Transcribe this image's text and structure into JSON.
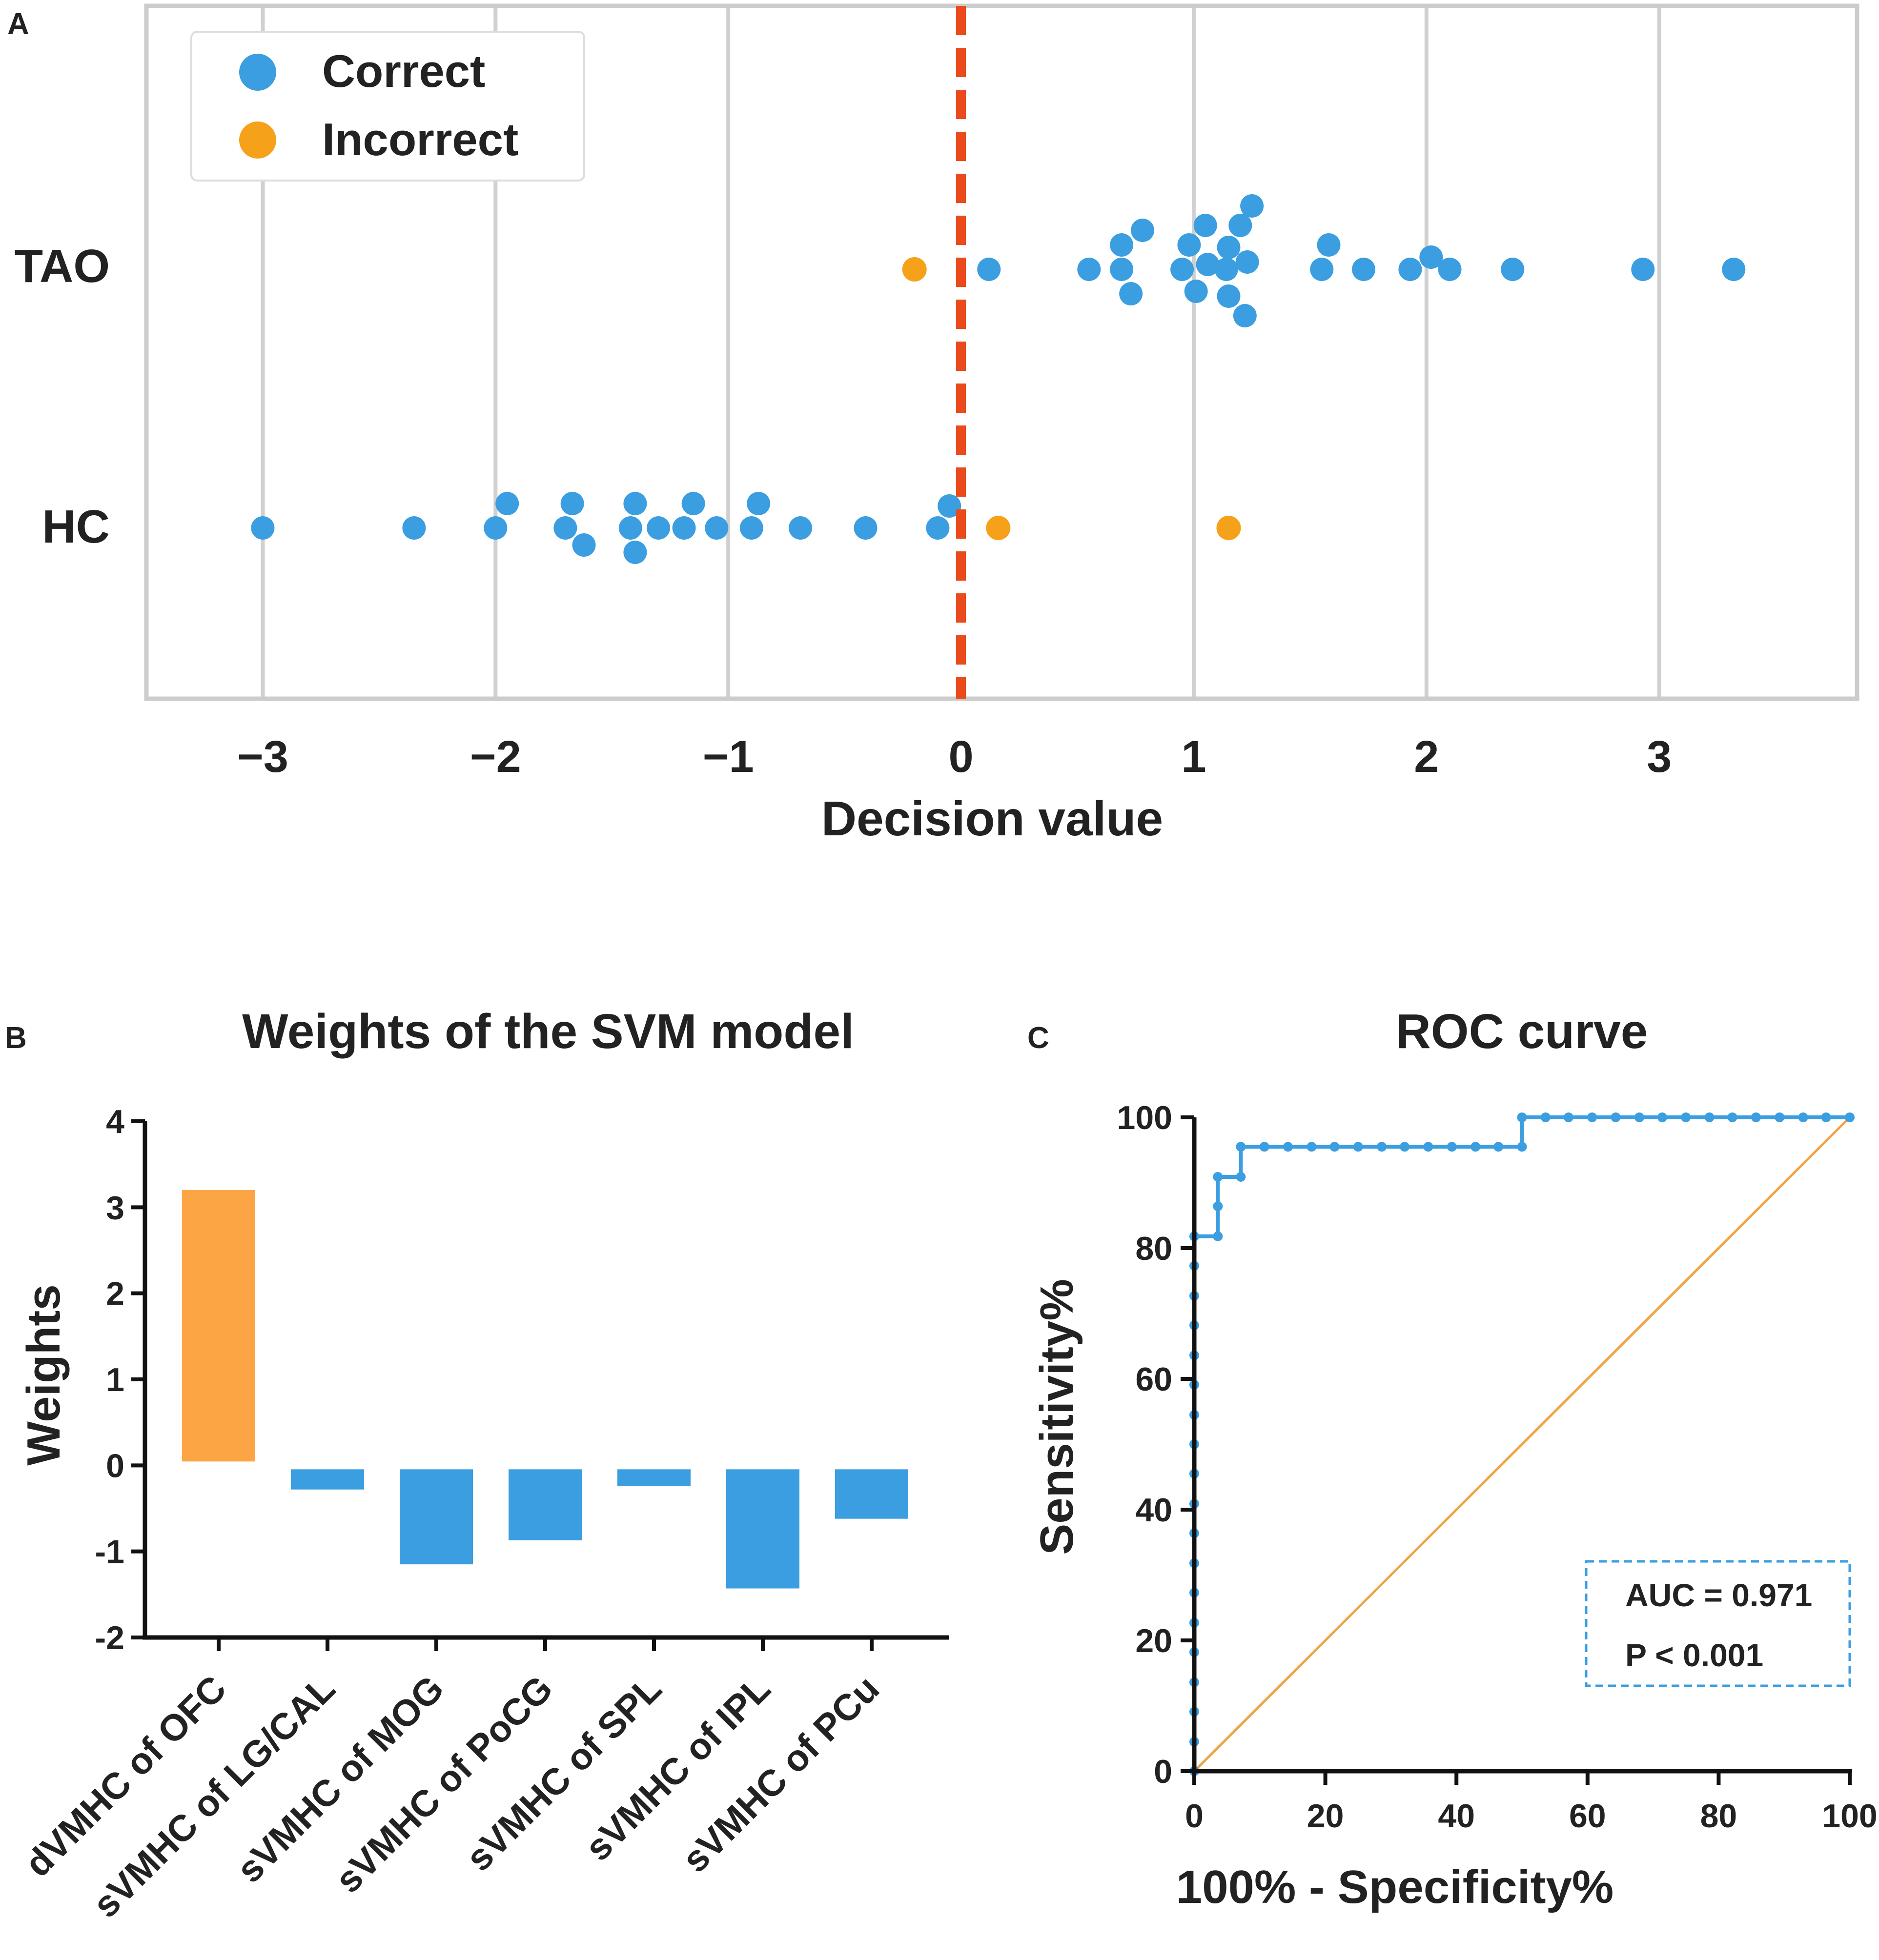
{
  "panels": {
    "a": "A",
    "b": "B",
    "c": "C"
  },
  "colors": {
    "correct": "#3a9ee0",
    "incorrect": "#f6a11a",
    "positive_bar": "#fba545",
    "negative_bar": "#3a9ee0",
    "threshold": "#ea4a1c",
    "diagonal": "#f0a445",
    "roc": "#3a9ee0",
    "grid": "#d0d0d0",
    "axis": "#111111"
  },
  "chart_data": [
    {
      "id": "A",
      "type": "scatter",
      "title": "",
      "xlabel": "Decision value",
      "ylabel": "",
      "xlim": [
        -3.5,
        3.85
      ],
      "xticks": [
        -3,
        -2,
        -1,
        0,
        1,
        2,
        3
      ],
      "xtick_labels": [
        "−3",
        "−2",
        "−1",
        "0",
        "1",
        "2",
        "3"
      ],
      "categories": [
        "TAO",
        "HC"
      ],
      "grid": true,
      "threshold": 0,
      "legend": {
        "position": "top-left",
        "entries": [
          "Correct",
          "Incorrect"
        ]
      },
      "series": [
        {
          "name": "TAO",
          "points": [
            {
              "x": -0.2,
              "o": 0,
              "s": "Incorrect"
            },
            {
              "x": 0.12,
              "o": 0,
              "s": "Correct"
            },
            {
              "x": 0.55,
              "o": 0,
              "s": "Correct"
            },
            {
              "x": 0.69,
              "o": 0,
              "s": "Correct"
            },
            {
              "x": 0.69,
              "o": 0.5,
              "s": "Correct"
            },
            {
              "x": 0.78,
              "o": 0.8,
              "s": "Correct"
            },
            {
              "x": 0.73,
              "o": -0.5,
              "s": "Correct"
            },
            {
              "x": 0.95,
              "o": 0,
              "s": "Correct"
            },
            {
              "x": 0.98,
              "o": 0.5,
              "s": "Correct"
            },
            {
              "x": 1.01,
              "o": -0.45,
              "s": "Correct"
            },
            {
              "x": 1.06,
              "o": 0.1,
              "s": "Correct"
            },
            {
              "x": 1.05,
              "o": 0.9,
              "s": "Correct"
            },
            {
              "x": 1.14,
              "o": 0,
              "s": "Correct"
            },
            {
              "x": 1.15,
              "o": 0.45,
              "s": "Correct"
            },
            {
              "x": 1.15,
              "o": -0.55,
              "s": "Correct"
            },
            {
              "x": 1.2,
              "o": 0.9,
              "s": "Correct"
            },
            {
              "x": 1.23,
              "o": 0.15,
              "s": "Correct"
            },
            {
              "x": 1.25,
              "o": 1.3,
              "s": "Correct"
            },
            {
              "x": 1.22,
              "o": -0.95,
              "s": "Correct"
            },
            {
              "x": 1.55,
              "o": 0,
              "s": "Correct"
            },
            {
              "x": 1.58,
              "o": 0.5,
              "s": "Correct"
            },
            {
              "x": 1.73,
              "o": 0,
              "s": "Correct"
            },
            {
              "x": 1.93,
              "o": 0,
              "s": "Correct"
            },
            {
              "x": 2.02,
              "o": 0.25,
              "s": "Correct"
            },
            {
              "x": 2.1,
              "o": 0,
              "s": "Correct"
            },
            {
              "x": 2.37,
              "o": 0,
              "s": "Correct"
            },
            {
              "x": 2.93,
              "o": 0,
              "s": "Correct"
            },
            {
              "x": 3.32,
              "o": 0,
              "s": "Correct"
            }
          ]
        },
        {
          "name": "HC",
          "points": [
            {
              "x": -3.0,
              "o": 0,
              "s": "Correct"
            },
            {
              "x": -2.35,
              "o": 0,
              "s": "Correct"
            },
            {
              "x": -2.0,
              "o": 0,
              "s": "Correct"
            },
            {
              "x": -1.95,
              "o": 0.5,
              "s": "Correct"
            },
            {
              "x": -1.7,
              "o": 0,
              "s": "Correct"
            },
            {
              "x": -1.67,
              "o": 0.5,
              "s": "Correct"
            },
            {
              "x": -1.62,
              "o": -0.35,
              "s": "Correct"
            },
            {
              "x": -1.42,
              "o": 0,
              "s": "Correct"
            },
            {
              "x": -1.4,
              "o": 0.5,
              "s": "Correct"
            },
            {
              "x": -1.4,
              "o": -0.5,
              "s": "Correct"
            },
            {
              "x": -1.3,
              "o": 0,
              "s": "Correct"
            },
            {
              "x": -1.19,
              "o": 0,
              "s": "Correct"
            },
            {
              "x": -1.15,
              "o": 0.5,
              "s": "Correct"
            },
            {
              "x": -1.05,
              "o": 0,
              "s": "Correct"
            },
            {
              "x": -0.9,
              "o": 0,
              "s": "Correct"
            },
            {
              "x": -0.87,
              "o": 0.5,
              "s": "Correct"
            },
            {
              "x": -0.69,
              "o": 0,
              "s": "Correct"
            },
            {
              "x": -0.41,
              "o": 0,
              "s": "Correct"
            },
            {
              "x": -0.1,
              "o": 0,
              "s": "Correct"
            },
            {
              "x": -0.05,
              "o": 0.45,
              "s": "Correct"
            },
            {
              "x": 0.16,
              "o": 0,
              "s": "Incorrect"
            },
            {
              "x": 1.15,
              "o": 0,
              "s": "Incorrect"
            }
          ]
        }
      ]
    },
    {
      "id": "B",
      "type": "bar",
      "title": "Weights of the SVM model",
      "xlabel": "",
      "ylabel": "Weights",
      "ylim": [
        -2,
        4
      ],
      "yticks": [
        -2,
        -1,
        0,
        1,
        2,
        3,
        4
      ],
      "ytick_labels": [
        "-2",
        "-1",
        "0",
        "1",
        "2",
        "3",
        "4"
      ],
      "categories": [
        "dVMHC of OFC",
        "sVMHC of LG/CAL",
        "sVMHC of MOG",
        "sVMHC of PoCG",
        "sVMHC of SPL",
        "sVMHC of IPL",
        "sVMHC of PCu"
      ],
      "values": [
        3.2,
        -0.28,
        -1.15,
        -0.87,
        -0.24,
        -1.43,
        -0.62
      ]
    },
    {
      "id": "C",
      "type": "line",
      "title": "ROC curve",
      "xlabel": "100% - Specificity%",
      "ylabel": "Sensitivity%",
      "xlim": [
        0,
        100
      ],
      "ylim": [
        0,
        100
      ],
      "xticks": [
        0,
        20,
        40,
        60,
        80,
        100
      ],
      "yticks": [
        0,
        20,
        40,
        60,
        80,
        100
      ],
      "xtick_labels": [
        "0",
        "20",
        "40",
        "60",
        "80",
        "100"
      ],
      "ytick_labels": [
        "0",
        "20",
        "40",
        "60",
        "80",
        "100"
      ],
      "roc": {
        "x": [
          0,
          0,
          0,
          0,
          0,
          0,
          0,
          0,
          0,
          0,
          0,
          0,
          0,
          0,
          0,
          0,
          0,
          0,
          0,
          0,
          3.6,
          3.6,
          3.6,
          7.1,
          7.1,
          10.7,
          14.3,
          17.9,
          21.4,
          25,
          28.6,
          32.1,
          35.7,
          39.3,
          42.9,
          46.4,
          50,
          50,
          53.6,
          57.1,
          60.7,
          64.3,
          67.9,
          71.4,
          75,
          78.6,
          82.1,
          85.7,
          89.3,
          92.9,
          96.4,
          100
        ],
        "y": [
          0,
          4.5,
          9.1,
          13.6,
          18.2,
          22.7,
          27.3,
          31.8,
          36.4,
          40.9,
          45.5,
          50,
          54.5,
          59.1,
          63.6,
          68.2,
          72.7,
          77.3,
          81.8,
          81.8,
          81.8,
          86.4,
          90.9,
          90.9,
          95.5,
          95.5,
          95.5,
          95.5,
          95.5,
          95.5,
          95.5,
          95.5,
          95.5,
          95.5,
          95.5,
          95.5,
          95.5,
          100,
          100,
          100,
          100,
          100,
          100,
          100,
          100,
          100,
          100,
          100,
          100,
          100,
          100,
          100
        ]
      },
      "reference_line": {
        "x": [
          0,
          100
        ],
        "y": [
          0,
          100
        ]
      },
      "annotations": {
        "auc": "AUC = 0.971",
        "p": "P < 0.001"
      }
    }
  ]
}
